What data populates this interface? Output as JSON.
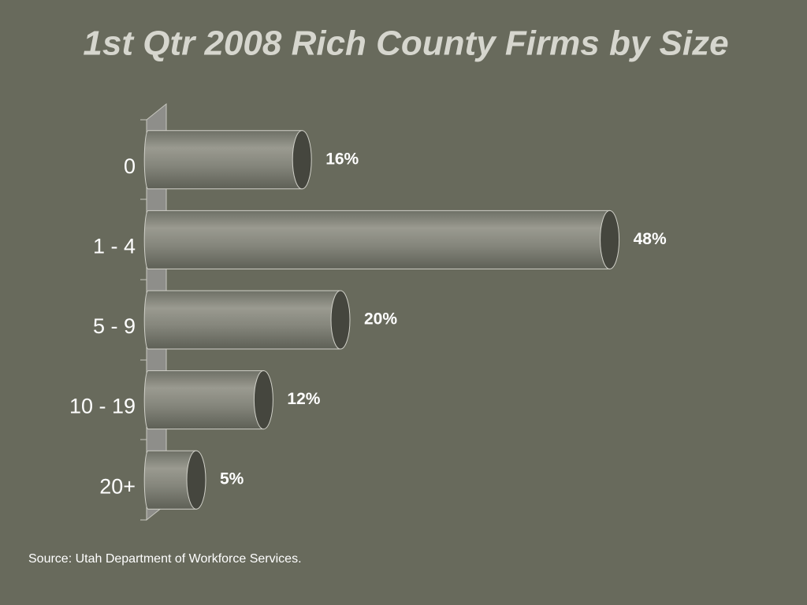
{
  "chart_data": {
    "type": "bar",
    "orientation": "horizontal",
    "title": "1st Qtr 2008 Rich County Firms by Size",
    "categories": [
      "0",
      "1 - 4",
      "5 - 9",
      "10 - 19",
      "20+"
    ],
    "values": [
      16,
      48,
      20,
      12,
      5
    ],
    "value_labels": [
      "16%",
      "48%",
      "20%",
      "12%",
      "5%"
    ],
    "color": "#85867c",
    "source": "Source: Utah Department of Workforce Services."
  }
}
